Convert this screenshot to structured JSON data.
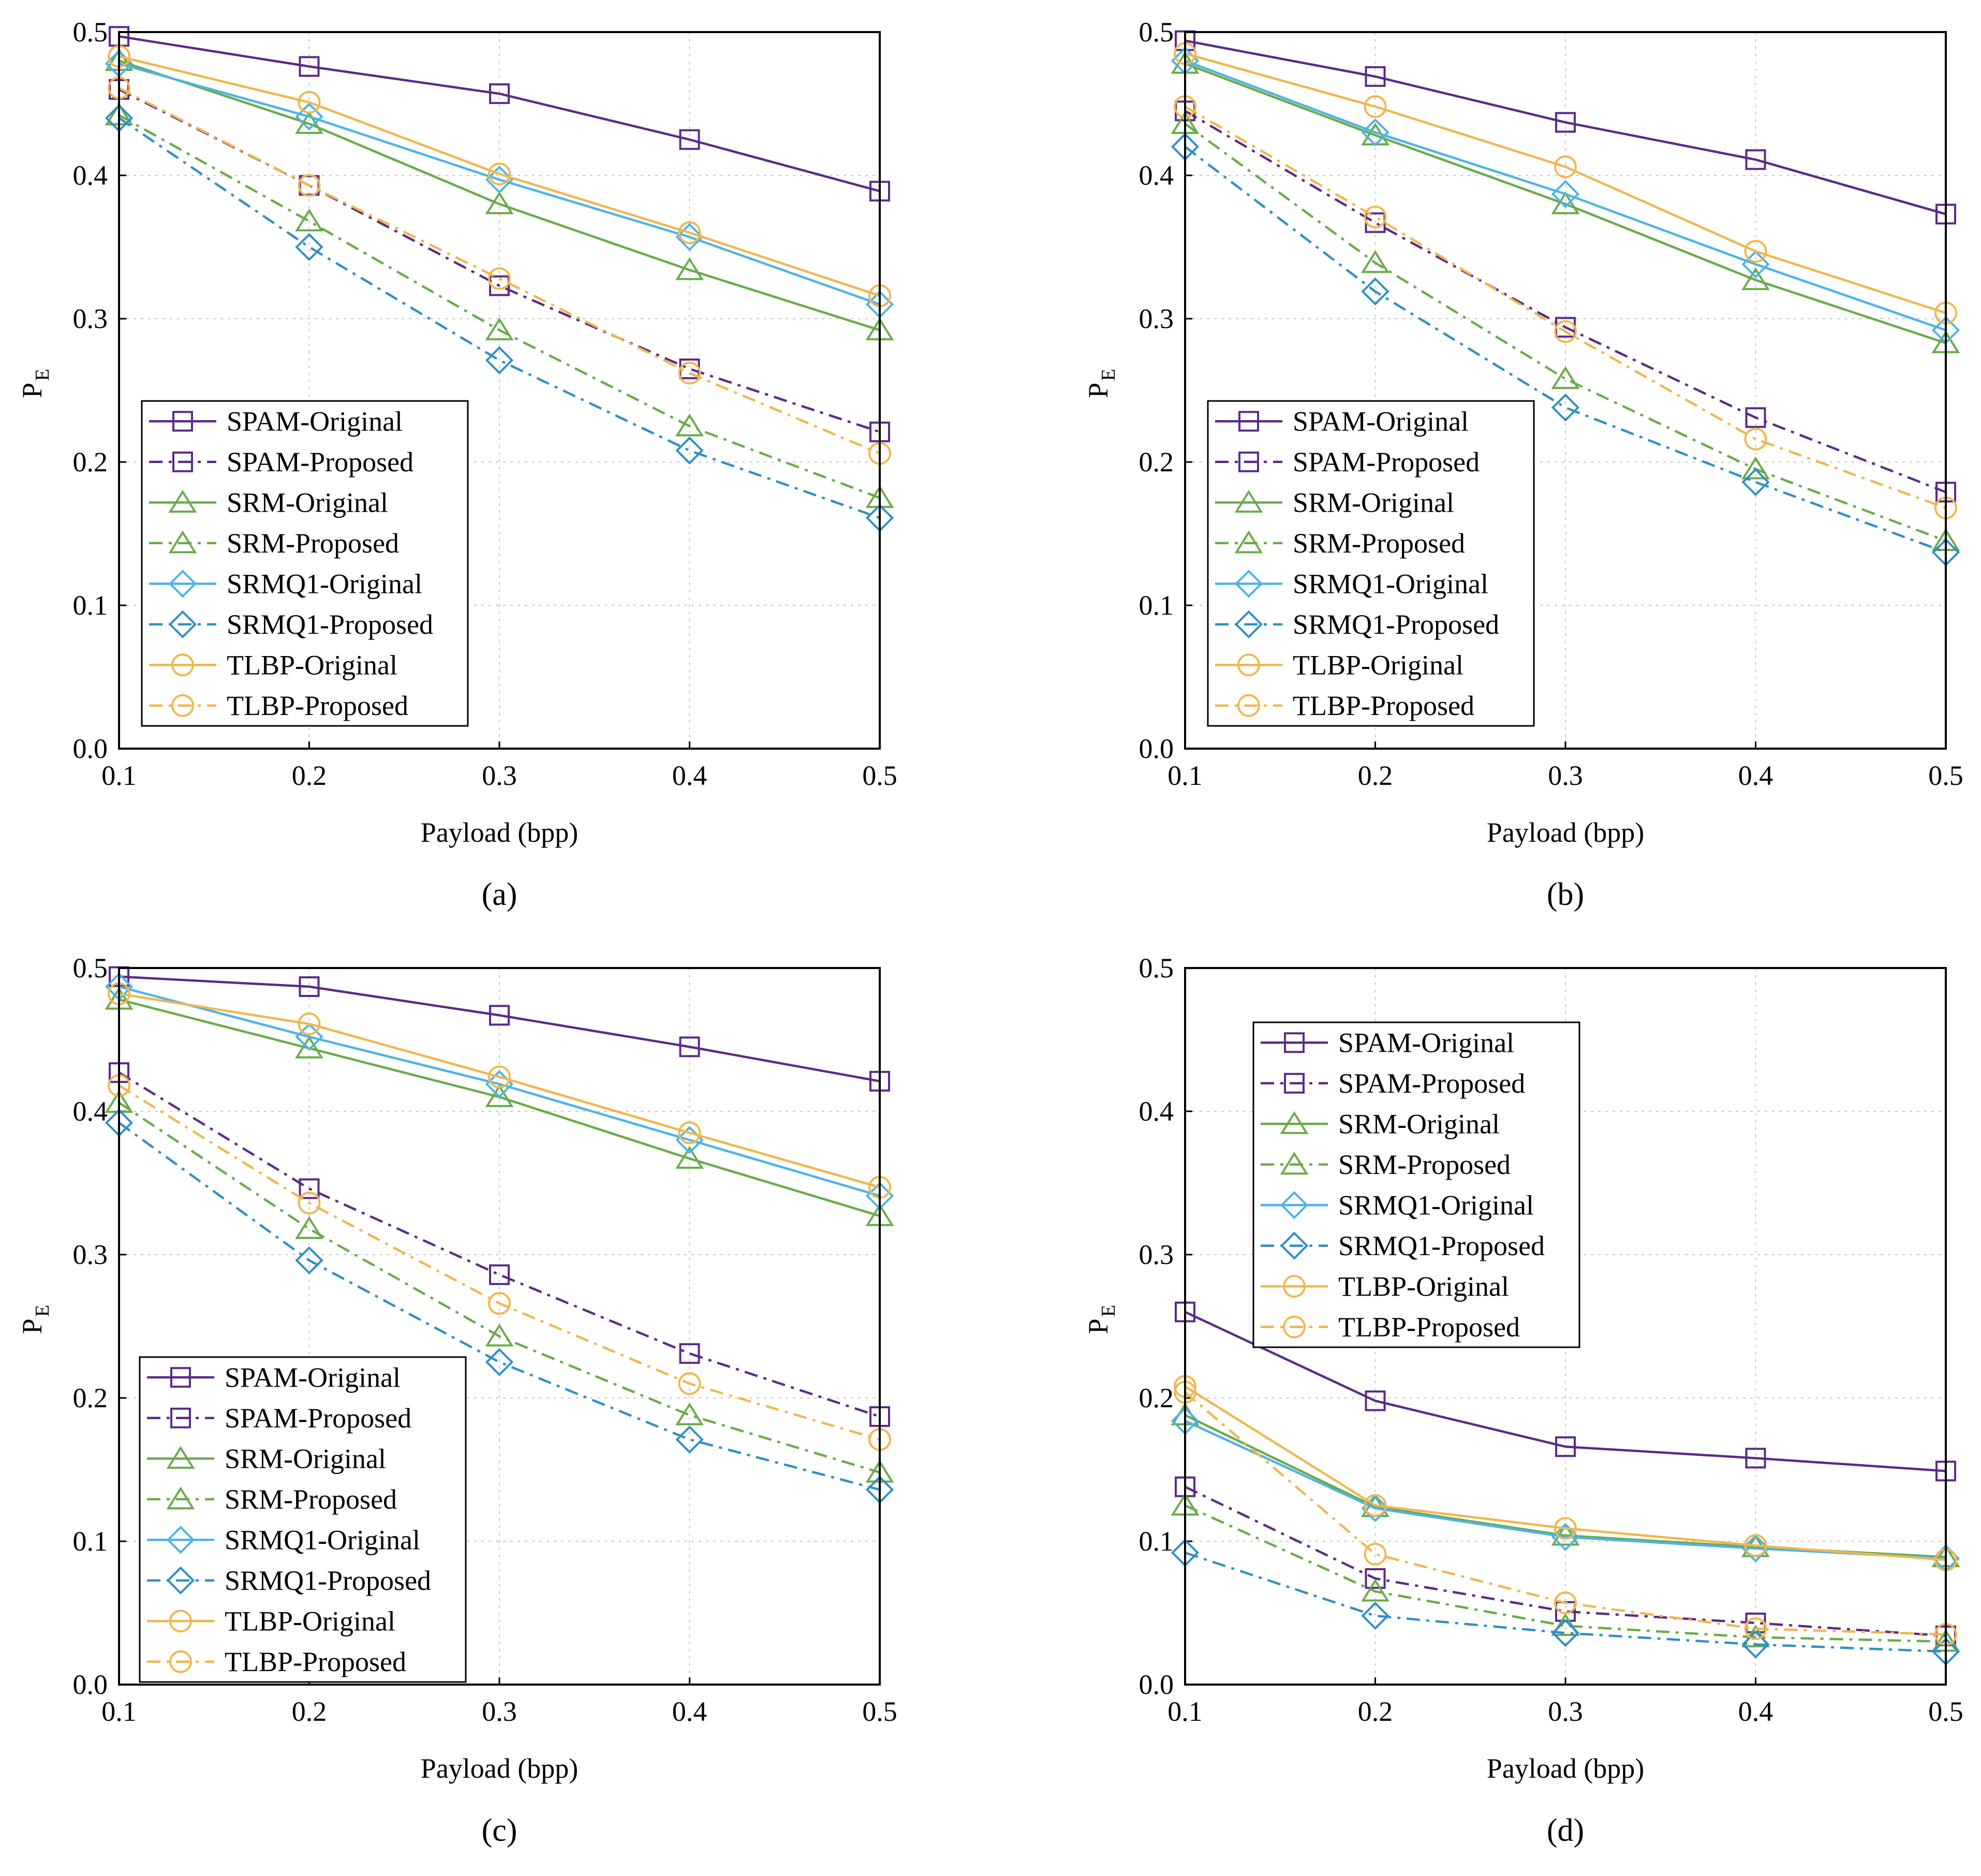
{
  "chart_data": [
    {
      "type": "line",
      "panel_label": "(a)",
      "xlabel": "Payload (bpp)",
      "ylabel": "P",
      "ylabel_sub": "E",
      "x": [
        0.1,
        0.2,
        0.3,
        0.4,
        0.5
      ],
      "xlim": [
        0.1,
        0.5
      ],
      "ylim": [
        0.0,
        0.5
      ],
      "xticks": [
        "0.1",
        "0.2",
        "0.3",
        "0.4",
        "0.5"
      ],
      "yticks": [
        "0.0",
        "0.1",
        "0.2",
        "0.3",
        "0.4",
        "0.5"
      ],
      "grid": true,
      "legend_position": "lower-left",
      "series": [
        {
          "name": "SPAM-Original",
          "color": "#5b2a86",
          "dash": "solid",
          "marker": "square",
          "values": [
            0.497,
            0.476,
            0.457,
            0.425,
            0.389
          ]
        },
        {
          "name": "SPAM-Proposed",
          "color": "#5b2a86",
          "dash": "dashdot",
          "marker": "square",
          "values": [
            0.46,
            0.393,
            0.323,
            0.265,
            0.221
          ]
        },
        {
          "name": "SRM-Original",
          "color": "#6aaa4a",
          "dash": "solid",
          "marker": "triangle",
          "values": [
            0.48,
            0.436,
            0.38,
            0.334,
            0.292
          ]
        },
        {
          "name": "SRM-Proposed",
          "color": "#6aaa4a",
          "dash": "dashdot",
          "marker": "triangle",
          "values": [
            0.442,
            0.368,
            0.292,
            0.225,
            0.175
          ]
        },
        {
          "name": "SRMQ1-Original",
          "color": "#4db3e6",
          "dash": "solid",
          "marker": "diamond",
          "values": [
            0.478,
            0.441,
            0.397,
            0.357,
            0.31
          ]
        },
        {
          "name": "SRMQ1-Proposed",
          "color": "#2f8fc4",
          "dash": "dashdot",
          "marker": "diamond",
          "values": [
            0.44,
            0.35,
            0.271,
            0.208,
            0.161
          ]
        },
        {
          "name": "TLBP-Original",
          "color": "#f0b64e",
          "dash": "solid",
          "marker": "circle",
          "values": [
            0.483,
            0.451,
            0.401,
            0.36,
            0.316
          ]
        },
        {
          "name": "TLBP-Proposed",
          "color": "#f0b64e",
          "dash": "dashdot",
          "marker": "circle",
          "values": [
            0.461,
            0.393,
            0.328,
            0.262,
            0.206
          ]
        }
      ]
    },
    {
      "type": "line",
      "panel_label": "(b)",
      "xlabel": "Payload (bpp)",
      "ylabel": "P",
      "ylabel_sub": "E",
      "x": [
        0.1,
        0.2,
        0.3,
        0.4,
        0.5
      ],
      "xlim": [
        0.1,
        0.5
      ],
      "ylim": [
        0.0,
        0.5
      ],
      "xticks": [
        "0.1",
        "0.2",
        "0.3",
        "0.4",
        "0.5"
      ],
      "yticks": [
        "0.0",
        "0.1",
        "0.2",
        "0.3",
        "0.4",
        "0.5"
      ],
      "grid": true,
      "legend_position": "lower-left",
      "series": [
        {
          "name": "SPAM-Original",
          "color": "#5b2a86",
          "dash": "solid",
          "marker": "square",
          "values": [
            0.494,
            0.469,
            0.437,
            0.411,
            0.373
          ]
        },
        {
          "name": "SPAM-Proposed",
          "color": "#5b2a86",
          "dash": "dashdot",
          "marker": "square",
          "values": [
            0.445,
            0.367,
            0.294,
            0.231,
            0.179
          ]
        },
        {
          "name": "SRM-Original",
          "color": "#6aaa4a",
          "dash": "solid",
          "marker": "triangle",
          "values": [
            0.478,
            0.428,
            0.38,
            0.327,
            0.283
          ]
        },
        {
          "name": "SRM-Proposed",
          "color": "#6aaa4a",
          "dash": "dashdot",
          "marker": "triangle",
          "values": [
            0.436,
            0.339,
            0.258,
            0.195,
            0.145
          ]
        },
        {
          "name": "SRMQ1-Original",
          "color": "#4db3e6",
          "dash": "solid",
          "marker": "diamond",
          "values": [
            0.48,
            0.43,
            0.387,
            0.338,
            0.292
          ]
        },
        {
          "name": "SRMQ1-Proposed",
          "color": "#2f8fc4",
          "dash": "dashdot",
          "marker": "diamond",
          "values": [
            0.42,
            0.319,
            0.238,
            0.186,
            0.137
          ]
        },
        {
          "name": "TLBP-Original",
          "color": "#f0b64e",
          "dash": "solid",
          "marker": "circle",
          "values": [
            0.485,
            0.448,
            0.406,
            0.347,
            0.304
          ]
        },
        {
          "name": "TLBP-Proposed",
          "color": "#f0b64e",
          "dash": "dashdot",
          "marker": "circle",
          "values": [
            0.448,
            0.371,
            0.291,
            0.216,
            0.168
          ]
        }
      ]
    },
    {
      "type": "line",
      "panel_label": "(c)",
      "xlabel": "Payload (bpp)",
      "ylabel": "P",
      "ylabel_sub": "E",
      "x": [
        0.1,
        0.2,
        0.3,
        0.4,
        0.5
      ],
      "xlim": [
        0.1,
        0.5
      ],
      "ylim": [
        0.0,
        0.5
      ],
      "xticks": [
        "0.1",
        "0.2",
        "0.3",
        "0.4",
        "0.5"
      ],
      "yticks": [
        "0.0",
        "0.1",
        "0.2",
        "0.3",
        "0.4",
        "0.5"
      ],
      "grid": true,
      "legend_position": "lower-left",
      "series": [
        {
          "name": "SPAM-Original",
          "color": "#5b2a86",
          "dash": "solid",
          "marker": "square",
          "values": [
            0.494,
            0.487,
            0.467,
            0.445,
            0.421
          ]
        },
        {
          "name": "SPAM-Proposed",
          "color": "#5b2a86",
          "dash": "dashdot",
          "marker": "square",
          "values": [
            0.427,
            0.346,
            0.286,
            0.231,
            0.187
          ]
        },
        {
          "name": "SRM-Original",
          "color": "#6aaa4a",
          "dash": "solid",
          "marker": "triangle",
          "values": [
            0.478,
            0.444,
            0.41,
            0.367,
            0.327
          ]
        },
        {
          "name": "SRM-Proposed",
          "color": "#6aaa4a",
          "dash": "dashdot",
          "marker": "triangle",
          "values": [
            0.406,
            0.318,
            0.243,
            0.188,
            0.148
          ]
        },
        {
          "name": "SRMQ1-Original",
          "color": "#4db3e6",
          "dash": "solid",
          "marker": "diamond",
          "values": [
            0.487,
            0.452,
            0.419,
            0.38,
            0.341
          ]
        },
        {
          "name": "SRMQ1-Proposed",
          "color": "#2f8fc4",
          "dash": "dashdot",
          "marker": "diamond",
          "values": [
            0.392,
            0.296,
            0.225,
            0.171,
            0.136
          ]
        },
        {
          "name": "TLBP-Original",
          "color": "#f0b64e",
          "dash": "solid",
          "marker": "circle",
          "values": [
            0.482,
            0.461,
            0.424,
            0.385,
            0.347
          ]
        },
        {
          "name": "TLBP-Proposed",
          "color": "#f0b64e",
          "dash": "dashdot",
          "marker": "circle",
          "values": [
            0.418,
            0.336,
            0.266,
            0.21,
            0.171
          ]
        }
      ]
    },
    {
      "type": "line",
      "panel_label": "(d)",
      "xlabel": "Payload (bpp)",
      "ylabel": "P",
      "ylabel_sub": "E",
      "x": [
        0.1,
        0.2,
        0.3,
        0.4,
        0.5
      ],
      "xlim": [
        0.1,
        0.5
      ],
      "ylim": [
        0.0,
        0.5
      ],
      "xticks": [
        "0.1",
        "0.2",
        "0.3",
        "0.4",
        "0.5"
      ],
      "yticks": [
        "0.0",
        "0.1",
        "0.2",
        "0.3",
        "0.4",
        "0.5"
      ],
      "grid": true,
      "legend_position": "upper-left",
      "series": [
        {
          "name": "SPAM-Original",
          "color": "#5b2a86",
          "dash": "solid",
          "marker": "square",
          "values": [
            0.26,
            0.198,
            0.166,
            0.158,
            0.149
          ]
        },
        {
          "name": "SPAM-Proposed",
          "color": "#5b2a86",
          "dash": "dashdot",
          "marker": "square",
          "values": [
            0.138,
            0.074,
            0.051,
            0.043,
            0.034
          ]
        },
        {
          "name": "SRM-Original",
          "color": "#6aaa4a",
          "dash": "solid",
          "marker": "triangle",
          "values": [
            0.188,
            0.124,
            0.104,
            0.096,
            0.089
          ]
        },
        {
          "name": "SRM-Proposed",
          "color": "#6aaa4a",
          "dash": "dashdot",
          "marker": "triangle",
          "values": [
            0.125,
            0.065,
            0.041,
            0.033,
            0.03
          ]
        },
        {
          "name": "SRMQ1-Original",
          "color": "#4db3e6",
          "dash": "solid",
          "marker": "diamond",
          "values": [
            0.184,
            0.123,
            0.103,
            0.095,
            0.088
          ]
        },
        {
          "name": "SRMQ1-Proposed",
          "color": "#2f8fc4",
          "dash": "dashdot",
          "marker": "diamond",
          "values": [
            0.092,
            0.048,
            0.036,
            0.028,
            0.023
          ]
        },
        {
          "name": "TLBP-Original",
          "color": "#f0b64e",
          "dash": "solid",
          "marker": "circle",
          "values": [
            0.208,
            0.125,
            0.109,
            0.097,
            0.087
          ]
        },
        {
          "name": "TLBP-Proposed",
          "color": "#f0b64e",
          "dash": "dashdot",
          "marker": "circle",
          "values": [
            0.204,
            0.091,
            0.057,
            0.039,
            0.035
          ]
        }
      ]
    }
  ]
}
